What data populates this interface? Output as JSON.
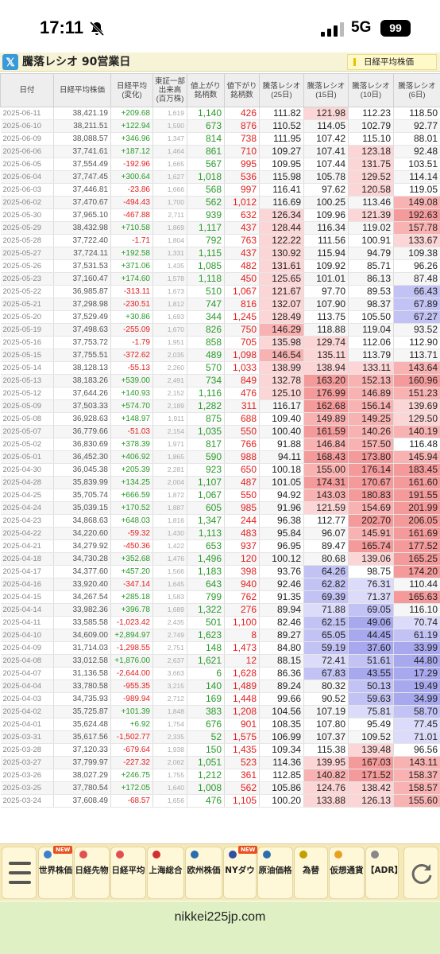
{
  "status": {
    "time": "17:11",
    "network": "5G",
    "battery": "99"
  },
  "header": {
    "title": "騰落レシオ 90営業日",
    "nikkei_button": "日経平均株価"
  },
  "table": {
    "headers": [
      "日付",
      "日経平均株価",
      "日経平均\n(変化)",
      "東証一部\n出来高\n(百万株)",
      "値上がり\n銘柄数",
      "値下がり\n銘柄数",
      "騰落レシオ\n(25日)",
      "騰落レシオ\n(15日)",
      "騰落レシオ\n(10日)",
      "騰落レシオ\n(6日)"
    ],
    "rows": [
      [
        "2025-06-11",
        "38,421.19",
        "+209.68",
        "1,619",
        "1,140",
        "426",
        "111.82",
        "121.98",
        "112.23",
        "118.50"
      ],
      [
        "2025-06-10",
        "38,211.51",
        "+122.94",
        "1,590",
        "673",
        "876",
        "110.52",
        "114.05",
        "102.79",
        "92.77"
      ],
      [
        "2025-06-09",
        "38,088.57",
        "+346.96",
        "1,347",
        "814",
        "738",
        "111.95",
        "107.42",
        "115.10",
        "88.01"
      ],
      [
        "2025-06-06",
        "37,741.61",
        "+187.12",
        "1,464",
        "861",
        "710",
        "109.27",
        "107.41",
        "123.18",
        "92.48"
      ],
      [
        "2025-06-05",
        "37,554.49",
        "-192.96",
        "1,665",
        "567",
        "995",
        "109.95",
        "107.44",
        "131.75",
        "103.51"
      ],
      [
        "2025-06-04",
        "37,747.45",
        "+300.64",
        "1,627",
        "1,018",
        "536",
        "115.98",
        "105.78",
        "129.52",
        "114.14"
      ],
      [
        "2025-06-03",
        "37,446.81",
        "-23.86",
        "1,666",
        "568",
        "997",
        "116.41",
        "97.62",
        "120.58",
        "119.05"
      ],
      [
        "2025-06-02",
        "37,470.67",
        "-494.43",
        "1,700",
        "562",
        "1,012",
        "116.69",
        "100.25",
        "113.46",
        "149.08"
      ],
      [
        "2025-05-30",
        "37,965.10",
        "-467.88",
        "2,711",
        "939",
        "632",
        "126.34",
        "109.96",
        "121.39",
        "192.63"
      ],
      [
        "2025-05-29",
        "38,432.98",
        "+710.58",
        "1,869",
        "1,117",
        "437",
        "128.44",
        "116.34",
        "119.02",
        "157.78"
      ],
      [
        "2025-05-28",
        "37,722.40",
        "-1.71",
        "1,804",
        "792",
        "763",
        "122.22",
        "111.56",
        "100.91",
        "133.67"
      ],
      [
        "2025-05-27",
        "37,724.11",
        "+192.58",
        "1,331",
        "1,115",
        "437",
        "130.92",
        "115.94",
        "94.79",
        "109.38"
      ],
      [
        "2025-05-26",
        "37,531.53",
        "+371.06",
        "1,435",
        "1,085",
        "482",
        "131.61",
        "109.92",
        "85.71",
        "96.26"
      ],
      [
        "2025-05-23",
        "37,160.47",
        "+174.60",
        "1,578",
        "1,118",
        "450",
        "125.65",
        "101.01",
        "86.13",
        "87.48"
      ],
      [
        "2025-05-22",
        "36,985.87",
        "-313.11",
        "1,673",
        "510",
        "1,067",
        "121.67",
        "97.70",
        "89.53",
        "66.43"
      ],
      [
        "2025-05-21",
        "37,298.98",
        "-230.51",
        "1,812",
        "747",
        "816",
        "132.07",
        "107.90",
        "98.37",
        "67.89"
      ],
      [
        "2025-05-20",
        "37,529.49",
        "+30.86",
        "1,693",
        "344",
        "1,245",
        "128.49",
        "113.75",
        "105.50",
        "67.27"
      ],
      [
        "2025-05-19",
        "37,498.63",
        "-255.09",
        "1,670",
        "826",
        "750",
        "146.29",
        "118.88",
        "119.04",
        "93.52"
      ],
      [
        "2025-05-16",
        "37,753.72",
        "-1.79",
        "1,951",
        "858",
        "705",
        "135.98",
        "129.74",
        "112.06",
        "112.90"
      ],
      [
        "2025-05-15",
        "37,755.51",
        "-372.62",
        "2,035",
        "489",
        "1,098",
        "146.54",
        "135.11",
        "113.79",
        "113.71"
      ],
      [
        "2025-05-14",
        "38,128.13",
        "-55.13",
        "2,260",
        "570",
        "1,033",
        "138.99",
        "138.94",
        "133.11",
        "143.64"
      ],
      [
        "2025-05-13",
        "38,183.26",
        "+539.00",
        "2,491",
        "734",
        "849",
        "132.78",
        "163.20",
        "152.13",
        "160.96"
      ],
      [
        "2025-05-12",
        "37,644.26",
        "+140.93",
        "2,152",
        "1,116",
        "476",
        "125.10",
        "176.99",
        "146.89",
        "151.23"
      ],
      [
        "2025-05-09",
        "37,503.33",
        "+574.70",
        "2,189",
        "1,282",
        "311",
        "116.17",
        "162.68",
        "156.14",
        "139.69"
      ],
      [
        "2025-05-08",
        "36,928.63",
        "+148.97",
        "1,911",
        "875",
        "688",
        "109.40",
        "149.89",
        "149.25",
        "129.50"
      ],
      [
        "2025-05-07",
        "36,779.66",
        "-51.03",
        "2,154",
        "1,035",
        "550",
        "100.40",
        "161.59",
        "140.26",
        "140.19"
      ],
      [
        "2025-05-02",
        "36,830.69",
        "+378.39",
        "1,971",
        "817",
        "766",
        "91.88",
        "146.84",
        "157.50",
        "116.48"
      ],
      [
        "2025-05-01",
        "36,452.30",
        "+406.92",
        "1,865",
        "590",
        "988",
        "94.11",
        "168.43",
        "173.80",
        "145.94"
      ],
      [
        "2025-04-30",
        "36,045.38",
        "+205.39",
        "2,281",
        "923",
        "650",
        "100.18",
        "155.00",
        "176.14",
        "183.45"
      ],
      [
        "2025-04-28",
        "35,839.99",
        "+134.25",
        "2,004",
        "1,107",
        "487",
        "101.05",
        "174.31",
        "170.67",
        "161.60"
      ],
      [
        "2025-04-25",
        "35,705.74",
        "+666.59",
        "1,872",
        "1,067",
        "550",
        "94.92",
        "143.03",
        "180.83",
        "191.55"
      ],
      [
        "2025-04-24",
        "35,039.15",
        "+170.52",
        "1,887",
        "605",
        "985",
        "91.96",
        "121.59",
        "154.69",
        "201.99"
      ],
      [
        "2025-04-23",
        "34,868.63",
        "+648.03",
        "1,816",
        "1,347",
        "244",
        "96.38",
        "112.77",
        "202.70",
        "206.05"
      ],
      [
        "2025-04-22",
        "34,220.60",
        "-59.32",
        "1,430",
        "1,113",
        "483",
        "95.84",
        "96.07",
        "145.91",
        "161.69"
      ],
      [
        "2025-04-21",
        "34,279.92",
        "-450.36",
        "1,422",
        "653",
        "937",
        "96.95",
        "89.47",
        "165.74",
        "177.52"
      ],
      [
        "2025-04-18",
        "34,730.28",
        "+352.68",
        "1,476",
        "1,496",
        "120",
        "100.12",
        "80.68",
        "139.06",
        "165.25"
      ],
      [
        "2025-04-17",
        "34,377.60",
        "+457.20",
        "1,566",
        "1,183",
        "398",
        "93.76",
        "64.26",
        "98.75",
        "174.20"
      ],
      [
        "2025-04-16",
        "33,920.40",
        "-347.14",
        "1,645",
        "643",
        "940",
        "92.46",
        "62.82",
        "76.31",
        "110.44"
      ],
      [
        "2025-04-15",
        "34,267.54",
        "+285.18",
        "1,583",
        "799",
        "762",
        "91.35",
        "69.39",
        "71.37",
        "165.63"
      ],
      [
        "2025-04-14",
        "33,982.36",
        "+396.78",
        "1,689",
        "1,322",
        "276",
        "89.94",
        "71.88",
        "69.05",
        "116.10"
      ],
      [
        "2025-04-11",
        "33,585.58",
        "-1,023.42",
        "2,435",
        "501",
        "1,100",
        "82.46",
        "62.15",
        "49.06",
        "70.74"
      ],
      [
        "2025-04-10",
        "34,609.00",
        "+2,894.97",
        "2,749",
        "1,623",
        "8",
        "89.27",
        "65.05",
        "44.45",
        "61.19"
      ],
      [
        "2025-04-09",
        "31,714.03",
        "-1,298.55",
        "2,751",
        "148",
        "1,473",
        "84.80",
        "59.19",
        "37.60",
        "33.99"
      ],
      [
        "2025-04-08",
        "33,012.58",
        "+1,876.00",
        "2,637",
        "1,621",
        "12",
        "88.15",
        "72.41",
        "51.61",
        "44.80"
      ],
      [
        "2025-04-07",
        "31,136.58",
        "-2,644.00",
        "3,663",
        "6",
        "1,628",
        "86.36",
        "67.83",
        "43.55",
        "17.29"
      ],
      [
        "2025-04-04",
        "33,780.58",
        "-955.35",
        "3,215",
        "140",
        "1,489",
        "89.24",
        "80.32",
        "50.13",
        "19.49"
      ],
      [
        "2025-04-03",
        "34,735.93",
        "-989.94",
        "2,712",
        "169",
        "1,448",
        "99.66",
        "90.52",
        "59.63",
        "34.99"
      ],
      [
        "2025-04-02",
        "35,725.87",
        "+101.39",
        "1,848",
        "383",
        "1,208",
        "104.56",
        "107.19",
        "75.81",
        "58.70"
      ],
      [
        "2025-04-01",
        "35,624.48",
        "+6.92",
        "1,754",
        "676",
        "901",
        "108.35",
        "107.80",
        "95.49",
        "77.45"
      ],
      [
        "2025-03-31",
        "35,617.56",
        "-1,502.77",
        "2,335",
        "52",
        "1,575",
        "106.99",
        "107.37",
        "109.52",
        "71.01"
      ],
      [
        "2025-03-28",
        "37,120.33",
        "-679.64",
        "1,938",
        "150",
        "1,435",
        "109.34",
        "115.38",
        "139.48",
        "96.56"
      ],
      [
        "2025-03-27",
        "37,799.97",
        "-227.32",
        "2,062",
        "1,051",
        "523",
        "114.36",
        "139.95",
        "167.03",
        "143.11"
      ],
      [
        "2025-03-26",
        "38,027.29",
        "+246.75",
        "1,755",
        "1,212",
        "361",
        "112.85",
        "140.82",
        "171.52",
        "158.37"
      ],
      [
        "2025-03-25",
        "37,780.54",
        "+172.05",
        "1,640",
        "1,008",
        "562",
        "105.86",
        "124.76",
        "138.42",
        "158.57"
      ],
      [
        "2025-03-24",
        "37,608.49",
        "-68.57",
        "1,656",
        "476",
        "1,105",
        "100.20",
        "133.88",
        "126.13",
        "155.60"
      ]
    ]
  },
  "nav": [
    "世界株価",
    "日経先物",
    "日経平均",
    "上海総合",
    "欧州株価",
    "NYダウ",
    "原油価格",
    "為替",
    "仮想通貨",
    "【ADR】"
  ],
  "nav_new": "NEW",
  "footer": {
    "url": "nikkei225jp.com"
  },
  "colors": {
    "up": "#2a9a2a",
    "down": "#e32020",
    "header_bar": "#f7f3d6",
    "nav_bar": "#f5e9b8",
    "footer": "#dff0c4"
  }
}
